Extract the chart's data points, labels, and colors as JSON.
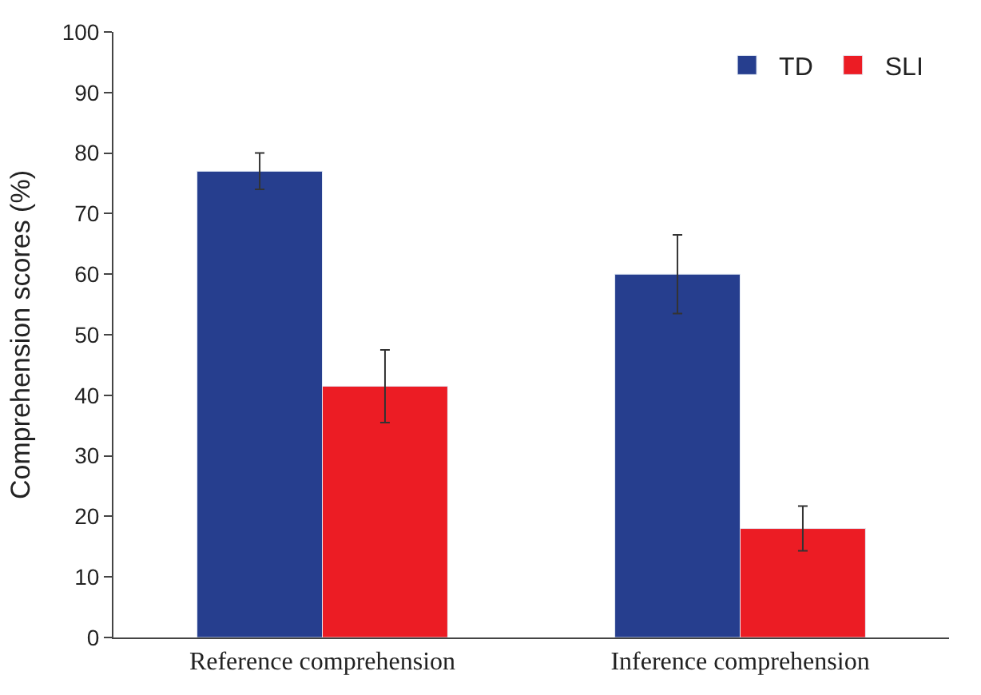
{
  "chart_data": {
    "type": "bar",
    "ylabel": "Comprehension scores (%)",
    "categories": [
      "Reference comprehension",
      "Inference comprehension"
    ],
    "series": [
      {
        "name": "TD",
        "color": "#263e8e",
        "values": [
          77,
          60
        ],
        "errors": [
          3,
          6.5
        ]
      },
      {
        "name": "SLI",
        "color": "#ec1c24",
        "values": [
          41.5,
          18
        ],
        "errors": [
          6,
          3.7
        ]
      }
    ],
    "ylim": [
      0,
      100
    ],
    "yticks": [
      0,
      10,
      20,
      30,
      40,
      50,
      60,
      70,
      80,
      90,
      100
    ],
    "legend": "top right"
  }
}
